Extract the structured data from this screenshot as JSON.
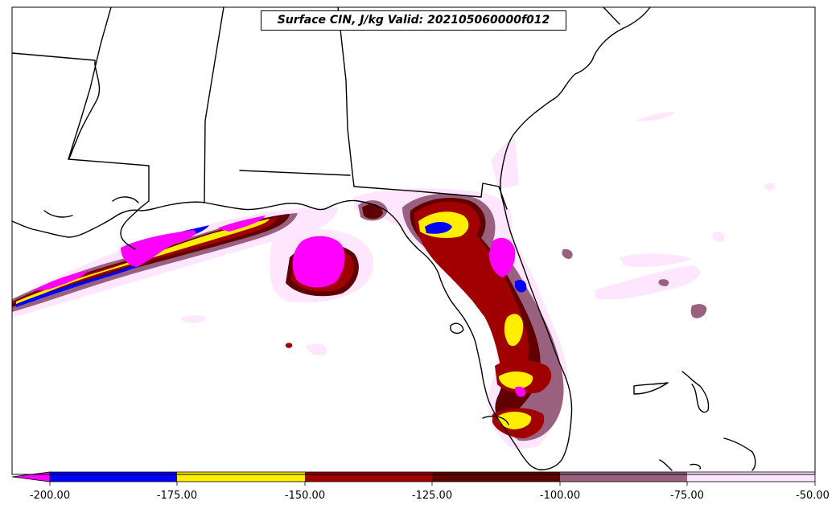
{
  "title": "Surface CIN, J/kg Valid: 202105060000f012",
  "colorbar": {
    "bins": [
      {
        "low": -200,
        "high": -175,
        "color": "#0000ff"
      },
      {
        "low": -175,
        "high": -150,
        "color": "#ffee00"
      },
      {
        "low": -150,
        "high": -125,
        "color": "#a00000"
      },
      {
        "low": -125,
        "high": -100,
        "color": "#600000"
      },
      {
        "low": -100,
        "high": -75,
        "color": "#9a6080"
      },
      {
        "low": -75,
        "high": -50,
        "color": "#ffe6ff"
      }
    ],
    "under_color": "#ff00ff",
    "tick_labels": [
      "-200.00",
      "-175.00",
      "-150.00",
      "-125.00",
      "-100.00",
      "-75.00",
      "-50.00"
    ]
  },
  "colors": {
    "outline": "#000000",
    "background": "#ffffff"
  }
}
